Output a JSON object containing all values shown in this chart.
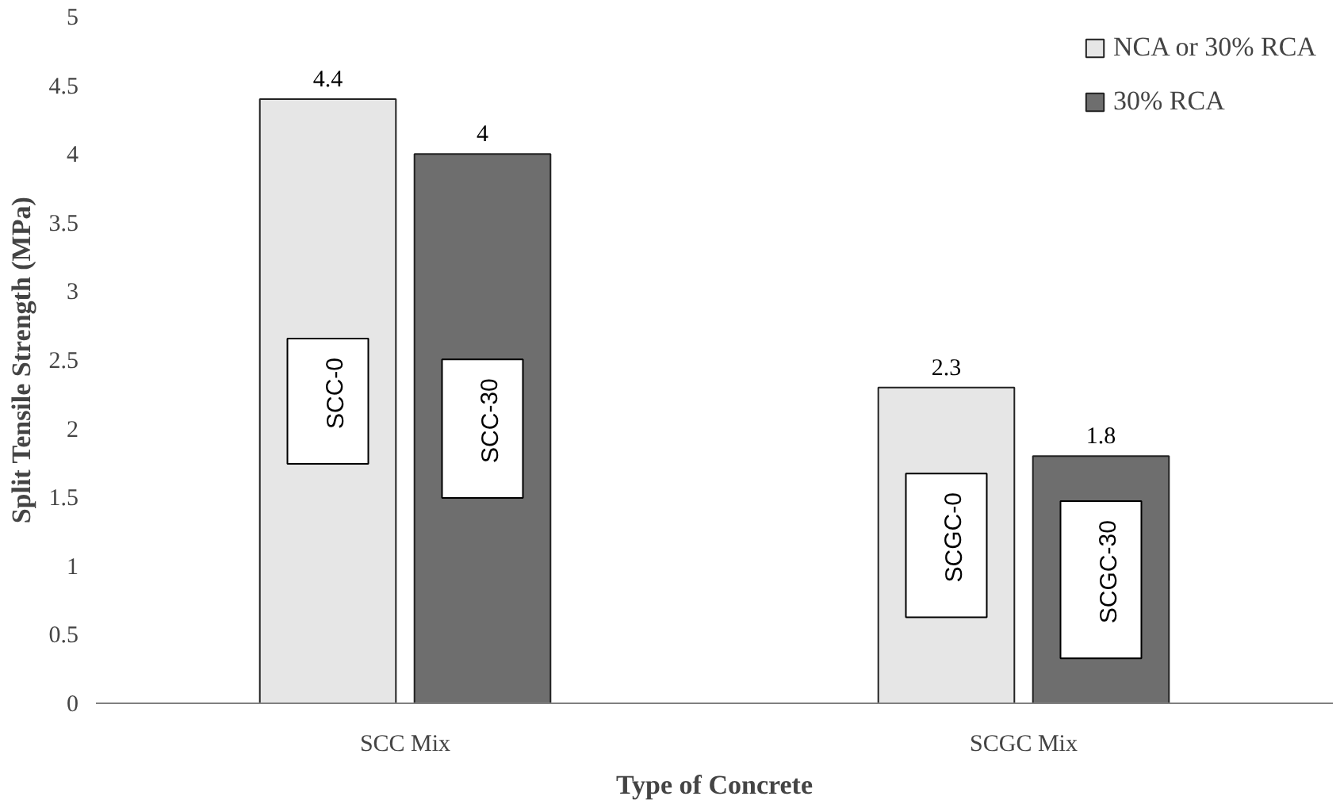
{
  "chart_data": {
    "type": "bar",
    "xlabel": "Type of Concrete",
    "ylabel": "Split Tensile Strength (MPa)",
    "categories": [
      "SCC Mix",
      "SCGC Mix"
    ],
    "series": [
      {
        "name": "NCA or 30% RCA",
        "color": "#e6e6e6",
        "values": [
          4.4,
          2.3
        ]
      },
      {
        "name": "30% RCA",
        "color": "#6e6e6e",
        "values": [
          4,
          1.8
        ]
      }
    ],
    "ylim": [
      0,
      5
    ],
    "yticks": [
      0,
      0.5,
      1,
      1.5,
      2,
      2.5,
      3,
      3.5,
      4,
      4.5,
      5
    ],
    "data_labels": true,
    "grid": false,
    "legend": "top right",
    "annotations": [
      "SCC-0",
      "SCC-30",
      "SCGC-0",
      "SCGC-30"
    ]
  }
}
